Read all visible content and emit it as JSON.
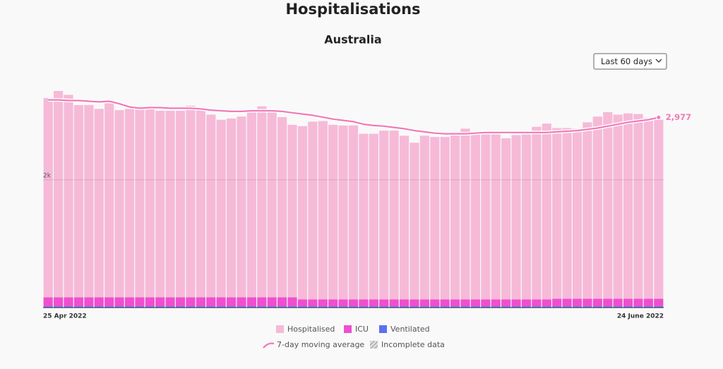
{
  "chart_data": {
    "type": "bar",
    "title": "Hospitalisations",
    "subtitle": "Australia",
    "dropdown": "Last 60 days",
    "categories": [
      "25 Apr 2022",
      null,
      null,
      null,
      null,
      null,
      null,
      null,
      null,
      null,
      null,
      null,
      null,
      null,
      null,
      null,
      null,
      null,
      null,
      null,
      null,
      null,
      null,
      null,
      null,
      null,
      null,
      null,
      null,
      null,
      null,
      null,
      null,
      null,
      null,
      null,
      null,
      null,
      null,
      null,
      null,
      null,
      null,
      null,
      null,
      null,
      null,
      null,
      null,
      null,
      null,
      null,
      null,
      null,
      null,
      null,
      null,
      null,
      null,
      null,
      "24 June 2022"
    ],
    "series": [
      {
        "name": "Hospitalised",
        "color": "#f6bad8",
        "values": [
          3120,
          3230,
          3170,
          3010,
          3010,
          2950,
          3040,
          2930,
          2950,
          2960,
          2950,
          2920,
          2920,
          2920,
          3000,
          2950,
          2860,
          2780,
          2800,
          2830,
          2930,
          2990,
          2930,
          2820,
          2700,
          2710,
          2780,
          2790,
          2730,
          2720,
          2720,
          2590,
          2590,
          2640,
          2640,
          2560,
          2450,
          2560,
          2540,
          2540,
          2620,
          2670,
          2620,
          2580,
          2580,
          2520,
          2570,
          2580,
          2700,
          2750,
          2670,
          2670,
          2660,
          2760,
          2850,
          2920,
          2880,
          2900,
          2890,
          2830,
          2800
        ]
      },
      {
        "name": "ICU",
        "color": "#ef4fcf",
        "values": [
          140,
          140,
          140,
          140,
          140,
          140,
          140,
          140,
          140,
          140,
          140,
          140,
          140,
          140,
          140,
          140,
          140,
          140,
          140,
          140,
          140,
          140,
          140,
          140,
          140,
          110,
          110,
          110,
          110,
          110,
          110,
          110,
          110,
          110,
          110,
          110,
          110,
          110,
          110,
          110,
          110,
          110,
          110,
          110,
          110,
          110,
          110,
          110,
          110,
          110,
          120,
          120,
          120,
          120,
          120,
          120,
          120,
          120,
          120,
          120,
          120
        ]
      },
      {
        "name": "Ventilated",
        "color": "#5b6ff0",
        "values": [
          20,
          20,
          20,
          20,
          20,
          20,
          20,
          20,
          20,
          20,
          20,
          20,
          20,
          20,
          20,
          20,
          20,
          20,
          20,
          20,
          20,
          20,
          20,
          20,
          20,
          20,
          20,
          20,
          20,
          20,
          20,
          20,
          20,
          20,
          20,
          20,
          20,
          20,
          20,
          20,
          20,
          20,
          20,
          20,
          20,
          20,
          20,
          20,
          20,
          20,
          20,
          20,
          20,
          20,
          20,
          20,
          20,
          20,
          20,
          20,
          20
        ]
      }
    ],
    "line": {
      "name": "7-day moving average",
      "color": "#f07ab6",
      "values": [
        3250,
        3250,
        3240,
        3240,
        3230,
        3220,
        3230,
        3190,
        3140,
        3120,
        3130,
        3130,
        3120,
        3120,
        3120,
        3110,
        3090,
        3080,
        3070,
        3070,
        3080,
        3080,
        3080,
        3070,
        3050,
        3030,
        3010,
        2980,
        2950,
        2930,
        2910,
        2870,
        2850,
        2840,
        2820,
        2800,
        2770,
        2750,
        2730,
        2720,
        2720,
        2720,
        2730,
        2740,
        2740,
        2740,
        2740,
        2740,
        2740,
        2740,
        2750,
        2760,
        2770,
        2790,
        2810,
        2840,
        2870,
        2900,
        2920,
        2940,
        2977
      ],
      "value_labels": [
        null,
        null,
        null,
        null,
        null,
        null,
        null,
        null,
        null,
        null,
        null,
        null,
        null,
        null,
        null,
        null,
        null,
        null,
        null,
        null,
        null,
        null,
        null,
        null,
        null,
        null,
        null,
        null,
        null,
        null,
        null,
        null,
        null,
        null,
        null,
        null,
        null,
        null,
        null,
        null,
        null,
        null,
        null,
        null,
        null,
        null,
        null,
        null,
        null,
        null,
        null,
        null,
        null,
        null,
        null,
        null,
        null,
        null,
        null,
        null,
        "2,977"
      ]
    },
    "incomplete_label": "Incomplete data",
    "ylim": [
      0,
      3500
    ],
    "yticks": [
      {
        "value": 2000,
        "label": "2k"
      }
    ],
    "grid": true
  }
}
